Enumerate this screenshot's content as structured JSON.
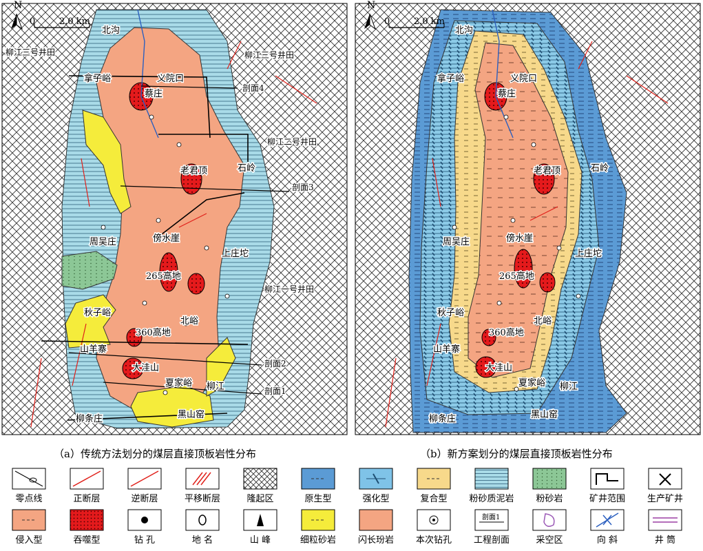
{
  "maps": [
    {
      "caption": "（a）传统方法划分的煤层直接顶板岩性分布",
      "north": "N",
      "scale_zero": "0",
      "scale_label": "2.0 km",
      "places": [
        "北沟",
        "拿子峪",
        "义院口",
        "蔡庄",
        "老君顶",
        "石岭",
        "周吴庄",
        "傍水崖",
        "上庄坨",
        "265高地",
        "秋子峪",
        "360高地",
        "北峪",
        "山羊寨",
        "大洼山",
        "夏家峪",
        "柳江",
        "柳条庄",
        "黑山窑"
      ],
      "annotations": [
        "柳江三号井田",
        "柳江三号井田",
        "剖面4",
        "柳江二号井田",
        "剖面3",
        "柳江一号井田",
        "剖面2",
        "剖面1"
      ]
    },
    {
      "caption": "（b）新方案划分的煤层直接顶板岩性分布",
      "north": "N",
      "scale_zero": "0",
      "scale_label": "2.0 km",
      "places": [
        "北沟",
        "拿子峪",
        "义院口",
        "蔡庄",
        "老君顶",
        "石岭",
        "周吴庄",
        "傍水崖",
        "上庄坨",
        "265高地",
        "秋子峪",
        "360高地",
        "北峪",
        "山羊寨",
        "大洼山",
        "夏家峪",
        "柳江",
        "柳条庄",
        "黑山窑"
      ]
    }
  ],
  "legend": [
    {
      "label": "零点线",
      "icon": "zero-line-icon"
    },
    {
      "label": "正断层",
      "icon": "normal-fault-icon",
      "color": "#e0201a"
    },
    {
      "label": "逆断层",
      "icon": "reverse-fault-icon",
      "color": "#e0201a"
    },
    {
      "label": "平移断层",
      "icon": "strike-slip-fault-icon",
      "color": "#e0201a"
    },
    {
      "label": "隆起区",
      "icon": "uplift-crosshatch-icon"
    },
    {
      "label": "原生型",
      "icon": "primary-type-icon",
      "color": "#5b9bd5"
    },
    {
      "label": "强化型",
      "icon": "enhanced-type-icon",
      "color": "#7fc3e8"
    },
    {
      "label": "复合型",
      "icon": "compound-type-icon",
      "color": "#f7d98b"
    },
    {
      "label": "粉砂质泥岩",
      "icon": "silty-mudstone-icon",
      "color": "#a9dbe8"
    },
    {
      "label": "粉砂岩",
      "icon": "siltstone-icon",
      "color": "#8cc796"
    },
    {
      "label": "矿井范围",
      "icon": "mine-boundary-icon"
    },
    {
      "label": "生产矿井",
      "icon": "producing-mine-icon"
    },
    {
      "label": "侵入型",
      "icon": "intrusive-type-icon",
      "color": "#f4a582"
    },
    {
      "label": "吞噬型",
      "icon": "engulfing-type-icon",
      "color": "#e41a1c"
    },
    {
      "label": "钻 孔",
      "icon": "borehole-icon"
    },
    {
      "label": "地 名",
      "icon": "place-name-icon"
    },
    {
      "label": "山 峰",
      "icon": "peak-icon"
    },
    {
      "label": "细粒砂岩",
      "icon": "fine-sandstone-icon",
      "color": "#f5ec3b"
    },
    {
      "label": "闪长玢岩",
      "icon": "diorite-porphyrite-icon",
      "color": "#f4a582"
    },
    {
      "label": "本次钻孔",
      "icon": "new-borehole-icon"
    },
    {
      "label": "工程剖面",
      "icon": "section-line-icon",
      "text": "剖面1"
    },
    {
      "label": "采空区",
      "icon": "goaf-icon",
      "color": "#9b59b6"
    },
    {
      "label": "向 斜",
      "icon": "syncline-icon",
      "color": "#2b5fbf"
    },
    {
      "label": "井 筒",
      "icon": "shaft-icon",
      "color": "#9b3fa3"
    }
  ]
}
